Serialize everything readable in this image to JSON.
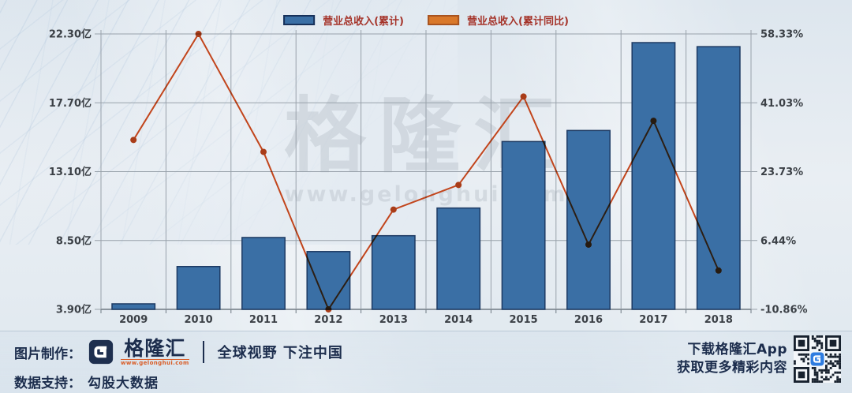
{
  "chart_data": {
    "type": "bar+line combo",
    "categories": [
      "2009",
      "2010",
      "2011",
      "2012",
      "2013",
      "2014",
      "2015",
      "2016",
      "2017",
      "2018"
    ],
    "series": [
      {
        "name": "营业总收入(累计)",
        "type": "bar",
        "axis": "left",
        "unit": "亿",
        "values": [
          4.27,
          6.76,
          8.7,
          7.76,
          8.82,
          10.67,
          15.11,
          15.85,
          21.72,
          21.45
        ],
        "color": "#3a6fa5",
        "border": "#1d3a63",
        "swatch": "#3a6fa5",
        "swatch_border": "#17315a"
      },
      {
        "name": "营业总收入(累计同比)",
        "type": "line",
        "axis": "right",
        "unit": "%",
        "values": [
          31.7,
          58.33,
          28.7,
          -10.86,
          14.2,
          20.4,
          42.6,
          5.4,
          36.5,
          -1.1
        ],
        "color": "#c2451c",
        "marker": "#a93c18",
        "swatch": "#d9782a",
        "swatch_border": "#a8531f"
      }
    ],
    "left_axis": {
      "min": 3.9,
      "max": 22.3,
      "ticks": [
        "22.30亿",
        "17.70亿",
        "13.10亿",
        "8.50亿",
        "3.90亿"
      ]
    },
    "right_axis": {
      "min": -10.86,
      "max": 58.33,
      "ticks": [
        "58.33%",
        "41.03%",
        "23.73%",
        "6.44%",
        "-10.86%"
      ]
    },
    "grid": true,
    "legend_position": "top-center"
  },
  "watermark": {
    "brand": "格隆汇",
    "url": "www.gelonghui.com"
  },
  "footer": {
    "made_by_label": "图片制作：",
    "brand": {
      "name": "格隆汇",
      "url": "www.gelonghui.com"
    },
    "slogan": "全球视野 下注中国",
    "data_support_label": "数据支持：",
    "data_support_value": "勾股大数据",
    "app_promo_line1": "下载格隆汇App",
    "app_promo_line2": "获取更多精彩内容"
  }
}
